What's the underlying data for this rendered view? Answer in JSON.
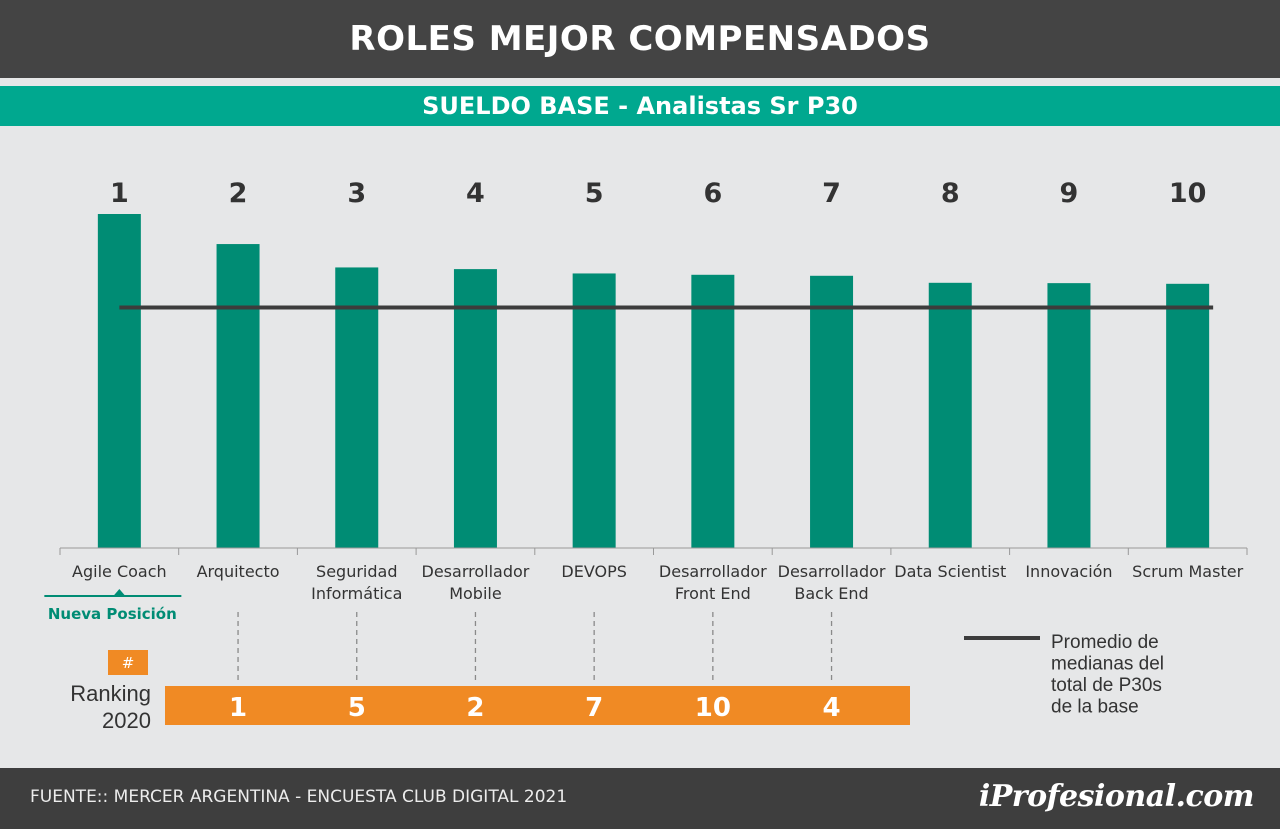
{
  "header": {
    "title": "ROLES MEJOR COMPENSADOS"
  },
  "subheader": {
    "title": "SUELDO BASE - Analistas Sr P30"
  },
  "colors": {
    "bar": "#008c74",
    "accent_orange": "#f08a24",
    "header_bg": "#444444",
    "subheader_bg": "#00a88f",
    "average_line": "#3c3c3c",
    "background": "#e6e7e8"
  },
  "chart_data": {
    "type": "bar",
    "categories": [
      "Agile Coach",
      "Arquitecto",
      "Seguridad\nInformática",
      "Desarrollador\nMobile",
      "DEVOPS",
      "Desarrollador\nFront End",
      "Desarrollador\nBack End",
      "Data Scientist",
      "Innovación",
      "Scrum Master"
    ],
    "ranks": [
      "1",
      "2",
      "3",
      "4",
      "5",
      "6",
      "7",
      "8",
      "9",
      "10"
    ],
    "values": [
      100,
      91,
      84,
      83.5,
      82.2,
      81.8,
      81.5,
      79.4,
      79.3,
      79.1
    ],
    "reference_line": {
      "value": 72,
      "label": "Promedio de\nmedianas del\ntotal de P30s\nde la base"
    },
    "ylim": [
      0,
      100
    ],
    "xlabel": "",
    "ylabel": "",
    "new_position": {
      "category_index": 0,
      "label": "Nueva Posición"
    },
    "ranking_2020": {
      "label": "Ranking\n2020",
      "badge": "#",
      "entries": [
        {
          "category_index": 1,
          "value": "1"
        },
        {
          "category_index": 2,
          "value": "5"
        },
        {
          "category_index": 3,
          "value": "2"
        },
        {
          "category_index": 4,
          "value": "7"
        },
        {
          "category_index": 5,
          "value": "10"
        },
        {
          "category_index": 6,
          "value": "4"
        }
      ]
    }
  },
  "footer": {
    "source": "FUENTE:: MERCER ARGENTINA - ENCUESTA CLUB DIGITAL 2021",
    "logo": "iProfesional.com"
  }
}
